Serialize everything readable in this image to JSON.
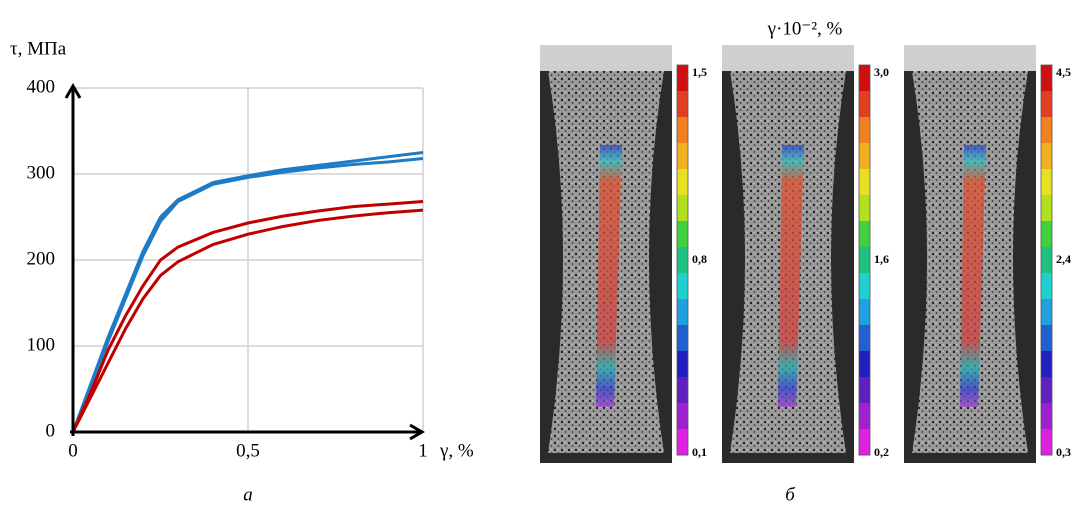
{
  "chart_data": {
    "type": "line",
    "y_label": "τ, МПа",
    "x_label": "γ, %",
    "x": [
      0,
      0.05,
      0.1,
      0.15,
      0.2,
      0.25,
      0.3,
      0.4,
      0.5,
      0.6,
      0.7,
      0.8,
      0.9,
      1
    ],
    "series": [
      {
        "color": "#1f7bc4",
        "values": [
          0,
          55,
          110,
          160,
          210,
          250,
          270,
          290,
          298,
          305,
          310,
          315,
          320,
          325
        ]
      },
      {
        "color": "#1f7bc4",
        "values": [
          0,
          50,
          105,
          155,
          205,
          245,
          268,
          288,
          296,
          302,
          307,
          311,
          314,
          318
        ]
      },
      {
        "color": "#c00000",
        "values": [
          0,
          45,
          95,
          135,
          170,
          200,
          215,
          232,
          243,
          251,
          257,
          262,
          265,
          268
        ]
      },
      {
        "color": "#c00000",
        "values": [
          0,
          40,
          80,
          120,
          155,
          182,
          198,
          218,
          230,
          239,
          246,
          251,
          255,
          258
        ]
      }
    ],
    "xlim": [
      0,
      1
    ],
    "xticks": [
      0,
      {
        "value": 0.5,
        "label": "0,5"
      },
      1
    ],
    "ylim": [
      0,
      400
    ],
    "yticks": [
      0,
      100,
      200,
      300,
      400
    ],
    "grid": true
  },
  "panel_b": {
    "title": "γ·10⁻², %",
    "colorbars": [
      {
        "labels": [
          "1,5",
          "0,8",
          "0,1"
        ]
      },
      {
        "labels": [
          "3,0",
          "1,6",
          "0,2"
        ]
      },
      {
        "labels": [
          "4,5",
          "2,4",
          "0,3"
        ]
      }
    ]
  },
  "panel_labels": [
    "а",
    "б"
  ]
}
